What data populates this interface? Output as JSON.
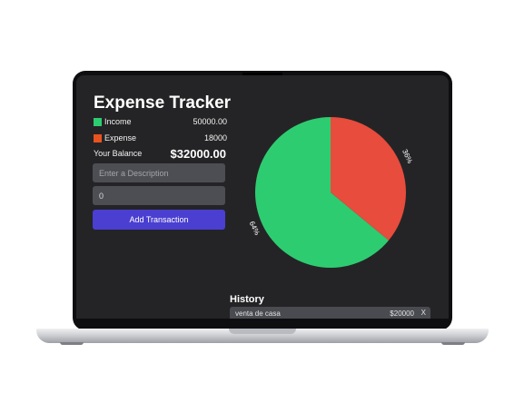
{
  "app": {
    "title": "Expense Tracker"
  },
  "summary": {
    "income_label": "Income",
    "income_value": "50000.00",
    "expense_label": "Expense",
    "expense_value": "18000",
    "balance_label": "Your Balance",
    "balance_value": "$32000.00"
  },
  "form": {
    "description_placeholder": "Enter a Description",
    "amount_value": "0",
    "add_button_label": "Add Transaction"
  },
  "colors": {
    "income": "#2ecc71",
    "expense": "#e74c3c",
    "accent": "#4a3fd0",
    "screen_bg": "#242426"
  },
  "chart_data": {
    "type": "pie",
    "slices": [
      {
        "label": "Income",
        "value": 64,
        "display": "64%",
        "color": "#2ecc71"
      },
      {
        "label": "Expense",
        "value": 36,
        "display": "36%",
        "color": "#e74c3c"
      }
    ]
  },
  "history": {
    "title": "History",
    "items": [
      {
        "description": "venta de casa",
        "amount": "$20000",
        "delete_label": "X"
      }
    ]
  }
}
